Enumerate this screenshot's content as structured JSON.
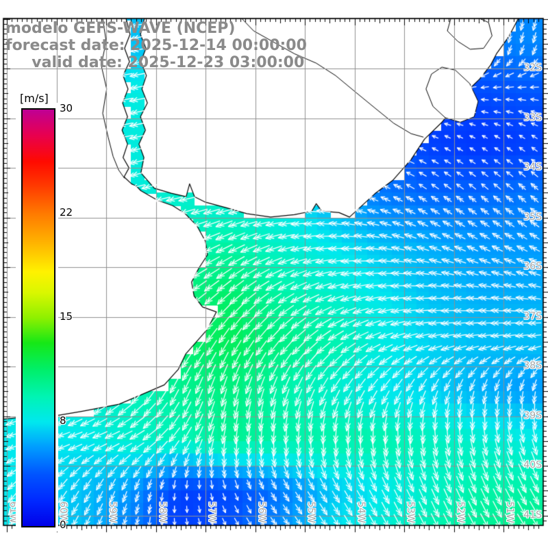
{
  "title": {
    "line1": "modelo GEFS-WAVE (NCEP)",
    "line2": "forecast date: 2025-12-14 00:00:00",
    "line3": "     valid date: 2025-12-23 03:00:00",
    "color": "#8a8a8a"
  },
  "colorbar": {
    "unit_label": "[m/s]",
    "ticks": [
      0,
      8,
      15,
      22,
      30
    ],
    "min": 0,
    "max": 30,
    "stops": [
      [
        0.0,
        "#0101e8"
      ],
      [
        0.06,
        "#0028ff"
      ],
      [
        0.125,
        "#0055ff"
      ],
      [
        0.19,
        "#009dff"
      ],
      [
        0.25,
        "#00e8ee"
      ],
      [
        0.31,
        "#00f4b4"
      ],
      [
        0.375,
        "#00ef6a"
      ],
      [
        0.44,
        "#16e816"
      ],
      [
        0.5,
        "#8ef000"
      ],
      [
        0.56,
        "#d9f700"
      ],
      [
        0.61,
        "#fff200"
      ],
      [
        0.68,
        "#ffb300"
      ],
      [
        0.75,
        "#ff7a00"
      ],
      [
        0.82,
        "#ff3700"
      ],
      [
        0.875,
        "#ff0a00"
      ],
      [
        0.94,
        "#e70051"
      ],
      [
        1.0,
        "#bf0094"
      ]
    ]
  },
  "axes": {
    "lat_labels": [
      "32S",
      "33S",
      "34S",
      "35S",
      "36S",
      "37S",
      "38S",
      "39S",
      "40S",
      "41S"
    ],
    "lat_values": [
      -32,
      -33,
      -34,
      -35,
      -36,
      -37,
      -38,
      -39,
      -40,
      -41
    ],
    "lon_labels": [
      "61W",
      "60W",
      "59W",
      "58W",
      "57W",
      "56W",
      "55W",
      "54W",
      "53W",
      "52W",
      "51W"
    ],
    "lon_values": [
      -61,
      -60,
      -59,
      -58,
      -57,
      -56,
      -55,
      -54,
      -53,
      -52,
      -51
    ],
    "label_color": "#a6a6a6",
    "grid_color": "#909090"
  },
  "chart_data": {
    "type": "heatmap",
    "subtype": "wind-speed-field-with-quiver-arrows",
    "units": "m/s",
    "lon_range": [
      -61.069,
      -50.2
    ],
    "lat_range": [
      -41.2,
      -30.99
    ],
    "grid_resolution_deg": 0.25,
    "colorbar_ticks": [
      0,
      8,
      15,
      22,
      30
    ],
    "arrow_color": "#ffffff",
    "field": {
      "lons": [
        -60.5,
        -59.5,
        -58.5,
        -57.5,
        -56.5,
        -55.5,
        -54.5,
        -53.5,
        -52.5,
        -51.5,
        -50.5
      ],
      "lats": [
        -31.5,
        -32.5,
        -33.5,
        -34.5,
        -35.5,
        -36.5,
        -37.5,
        -38.5,
        -39.5,
        -40.5,
        -41.5
      ],
      "speed_ms": [
        [
          6.0,
          6.5,
          7.0,
          7.0,
          6.0,
          5.5,
          5.0,
          4.5,
          4.5,
          5.0,
          5.5
        ],
        [
          7.0,
          7.5,
          8.5,
          8.0,
          7.0,
          6.0,
          5.0,
          4.0,
          3.5,
          3.5,
          4.0
        ],
        [
          8.0,
          8.0,
          8.5,
          8.5,
          8.0,
          7.0,
          6.0,
          5.0,
          3.0,
          2.5,
          3.0
        ],
        [
          8.0,
          8.5,
          8.5,
          9.0,
          8.5,
          8.0,
          6.5,
          5.0,
          4.5,
          4.5,
          5.0
        ],
        [
          9.0,
          9.0,
          9.0,
          9.5,
          10.0,
          9.0,
          8.0,
          7.0,
          6.5,
          6.0,
          6.0
        ],
        [
          9.0,
          9.0,
          10.0,
          11.0,
          11.5,
          10.0,
          9.0,
          8.0,
          7.0,
          6.5,
          6.5
        ],
        [
          9.0,
          9.5,
          10.0,
          11.5,
          12.0,
          11.0,
          10.0,
          8.5,
          7.5,
          7.0,
          7.0
        ],
        [
          8.5,
          9.0,
          9.5,
          10.5,
          11.0,
          10.0,
          9.0,
          8.0,
          7.5,
          6.5,
          6.0
        ],
        [
          8.0,
          8.0,
          9.0,
          9.5,
          10.5,
          10.0,
          10.0,
          10.0,
          9.5,
          9.0,
          8.5
        ],
        [
          8.0,
          7.0,
          6.0,
          3.0,
          3.5,
          5.0,
          7.0,
          8.0,
          9.0,
          10.0,
          10.0
        ],
        [
          8.0,
          7.0,
          5.0,
          3.0,
          4.0,
          6.0,
          8.0,
          9.0,
          10.0,
          10.5,
          11.0
        ]
      ],
      "dir_to_deg": [
        [
          250,
          255,
          260,
          250,
          230,
          210,
          195,
          185,
          185,
          190,
          195
        ],
        [
          255,
          258,
          260,
          255,
          245,
          235,
          250,
          260,
          265,
          270,
          275
        ],
        [
          255,
          258,
          258,
          260,
          255,
          260,
          270,
          280,
          295,
          300,
          305
        ],
        [
          250,
          252,
          255,
          258,
          260,
          270,
          285,
          295,
          305,
          310,
          312
        ],
        [
          245,
          248,
          250,
          250,
          245,
          255,
          268,
          280,
          292,
          298,
          300
        ],
        [
          235,
          238,
          240,
          235,
          230,
          240,
          252,
          262,
          272,
          278,
          280
        ],
        [
          225,
          228,
          230,
          220,
          212,
          222,
          235,
          248,
          258,
          262,
          262
        ],
        [
          240,
          235,
          220,
          205,
          196,
          200,
          210,
          215,
          205,
          196,
          192
        ],
        [
          255,
          250,
          245,
          215,
          186,
          182,
          180,
          176,
          172,
          168,
          164
        ],
        [
          222,
          212,
          200,
          185,
          160,
          148,
          148,
          152,
          156,
          156,
          152
        ],
        [
          212,
          205,
          192,
          170,
          146,
          142,
          146,
          150,
          152,
          150,
          146
        ]
      ]
    }
  },
  "geo": {
    "land_polygons": {
      "argentina": [
        [
          -61.07,
          -30.99
        ],
        [
          -58.6,
          -30.99
        ],
        [
          -58.52,
          -31.31
        ],
        [
          -58.63,
          -31.59
        ],
        [
          -58.53,
          -31.86
        ],
        [
          -58.66,
          -32.14
        ],
        [
          -58.56,
          -32.41
        ],
        [
          -58.67,
          -32.69
        ],
        [
          -58.57,
          -32.97
        ],
        [
          -58.68,
          -33.24
        ],
        [
          -58.57,
          -33.52
        ],
        [
          -58.66,
          -33.79
        ],
        [
          -58.54,
          -34.0
        ],
        [
          -58.64,
          -34.18
        ],
        [
          -58.49,
          -34.32
        ],
        [
          -58.39,
          -34.37
        ],
        [
          -58.3,
          -34.46
        ],
        [
          -57.97,
          -34.65
        ],
        [
          -57.66,
          -34.76
        ],
        [
          -57.41,
          -34.92
        ],
        [
          -57.17,
          -35.17
        ],
        [
          -57.0,
          -35.48
        ],
        [
          -56.96,
          -35.75
        ],
        [
          -57.14,
          -36.03
        ],
        [
          -57.28,
          -36.3
        ],
        [
          -57.23,
          -36.58
        ],
        [
          -57.06,
          -36.8
        ],
        [
          -56.78,
          -36.9
        ],
        [
          -56.97,
          -37.26
        ],
        [
          -57.4,
          -37.75
        ],
        [
          -57.55,
          -38.06
        ],
        [
          -57.83,
          -38.37
        ],
        [
          -58.74,
          -38.76
        ],
        [
          -59.48,
          -38.9
        ],
        [
          -60.01,
          -38.99
        ],
        [
          -60.31,
          -38.94
        ],
        [
          -60.17,
          -39.06
        ],
        [
          -60.59,
          -39.01
        ],
        [
          -61.07,
          -39.06
        ]
      ],
      "uruguay_brazil": [
        [
          -58.23,
          -30.99
        ],
        [
          -58.31,
          -31.31
        ],
        [
          -58.2,
          -31.59
        ],
        [
          -58.3,
          -31.86
        ],
        [
          -58.19,
          -32.14
        ],
        [
          -58.28,
          -32.41
        ],
        [
          -58.17,
          -32.69
        ],
        [
          -58.31,
          -32.97
        ],
        [
          -58.21,
          -33.24
        ],
        [
          -58.34,
          -33.52
        ],
        [
          -58.24,
          -33.79
        ],
        [
          -58.3,
          -34.1
        ],
        [
          -58.03,
          -34.41
        ],
        [
          -57.69,
          -34.51
        ],
        [
          -57.39,
          -34.58
        ],
        [
          -57.32,
          -34.32
        ],
        [
          -57.22,
          -34.58
        ],
        [
          -57.0,
          -34.69
        ],
        [
          -56.59,
          -34.8
        ],
        [
          -56.17,
          -34.92
        ],
        [
          -55.69,
          -34.99
        ],
        [
          -55.21,
          -34.94
        ],
        [
          -54.86,
          -34.87
        ],
        [
          -54.77,
          -34.72
        ],
        [
          -54.66,
          -34.87
        ],
        [
          -54.31,
          -34.9
        ],
        [
          -54.1,
          -34.99
        ],
        [
          -53.59,
          -34.52
        ],
        [
          -53.23,
          -34.25
        ],
        [
          -52.86,
          -33.83
        ],
        [
          -52.59,
          -33.42
        ],
        [
          -52.24,
          -33.08
        ],
        [
          -52.03,
          -32.83
        ],
        [
          -51.76,
          -32.48
        ],
        [
          -51.48,
          -32.21
        ],
        [
          -51.26,
          -31.93
        ],
        [
          -51.14,
          -31.7
        ],
        [
          -50.89,
          -31.35
        ],
        [
          -50.7,
          -30.99
        ]
      ]
    },
    "river_lines": {
      "parana_river": [
        [
          -59.07,
          -30.99
        ],
        [
          -59.0,
          -31.45
        ],
        [
          -59.1,
          -31.93
        ],
        [
          -58.99,
          -32.41
        ],
        [
          -59.07,
          -32.9
        ],
        [
          -58.96,
          -33.38
        ],
        [
          -58.86,
          -33.77
        ],
        [
          -58.75,
          -34.04
        ],
        [
          -58.63,
          -34.21
        ]
      ],
      "border_river": [
        [
          -56.27,
          -30.99
        ],
        [
          -56.03,
          -31.24
        ],
        [
          -55.62,
          -31.47
        ],
        [
          -55.21,
          -31.7
        ],
        [
          -54.77,
          -31.89
        ],
        [
          -54.38,
          -32.14
        ],
        [
          -53.97,
          -32.48
        ],
        [
          -53.58,
          -32.8
        ],
        [
          -53.21,
          -33.1
        ],
        [
          -52.86,
          -33.31
        ],
        [
          -52.61,
          -33.38
        ]
      ]
    },
    "lagoon_outlines": {
      "lagoa_mirim": [
        [
          -52.45,
          -32.11
        ],
        [
          -52.56,
          -32.41
        ],
        [
          -52.42,
          -32.76
        ],
        [
          -52.17,
          -32.99
        ],
        [
          -51.87,
          -33.08
        ],
        [
          -51.59,
          -32.97
        ],
        [
          -51.51,
          -32.66
        ],
        [
          -51.68,
          -32.3
        ],
        [
          -51.97,
          -32.03
        ],
        [
          -52.24,
          -31.97
        ]
      ],
      "lagoa_dos_patos": [
        [
          -52.06,
          -30.99
        ],
        [
          -52.13,
          -31.24
        ],
        [
          -51.92,
          -31.45
        ],
        [
          -51.67,
          -31.61
        ],
        [
          -51.4,
          -31.59
        ],
        [
          -51.23,
          -31.34
        ],
        [
          -51.3,
          -31.07
        ],
        [
          -51.48,
          -30.99
        ]
      ]
    }
  }
}
